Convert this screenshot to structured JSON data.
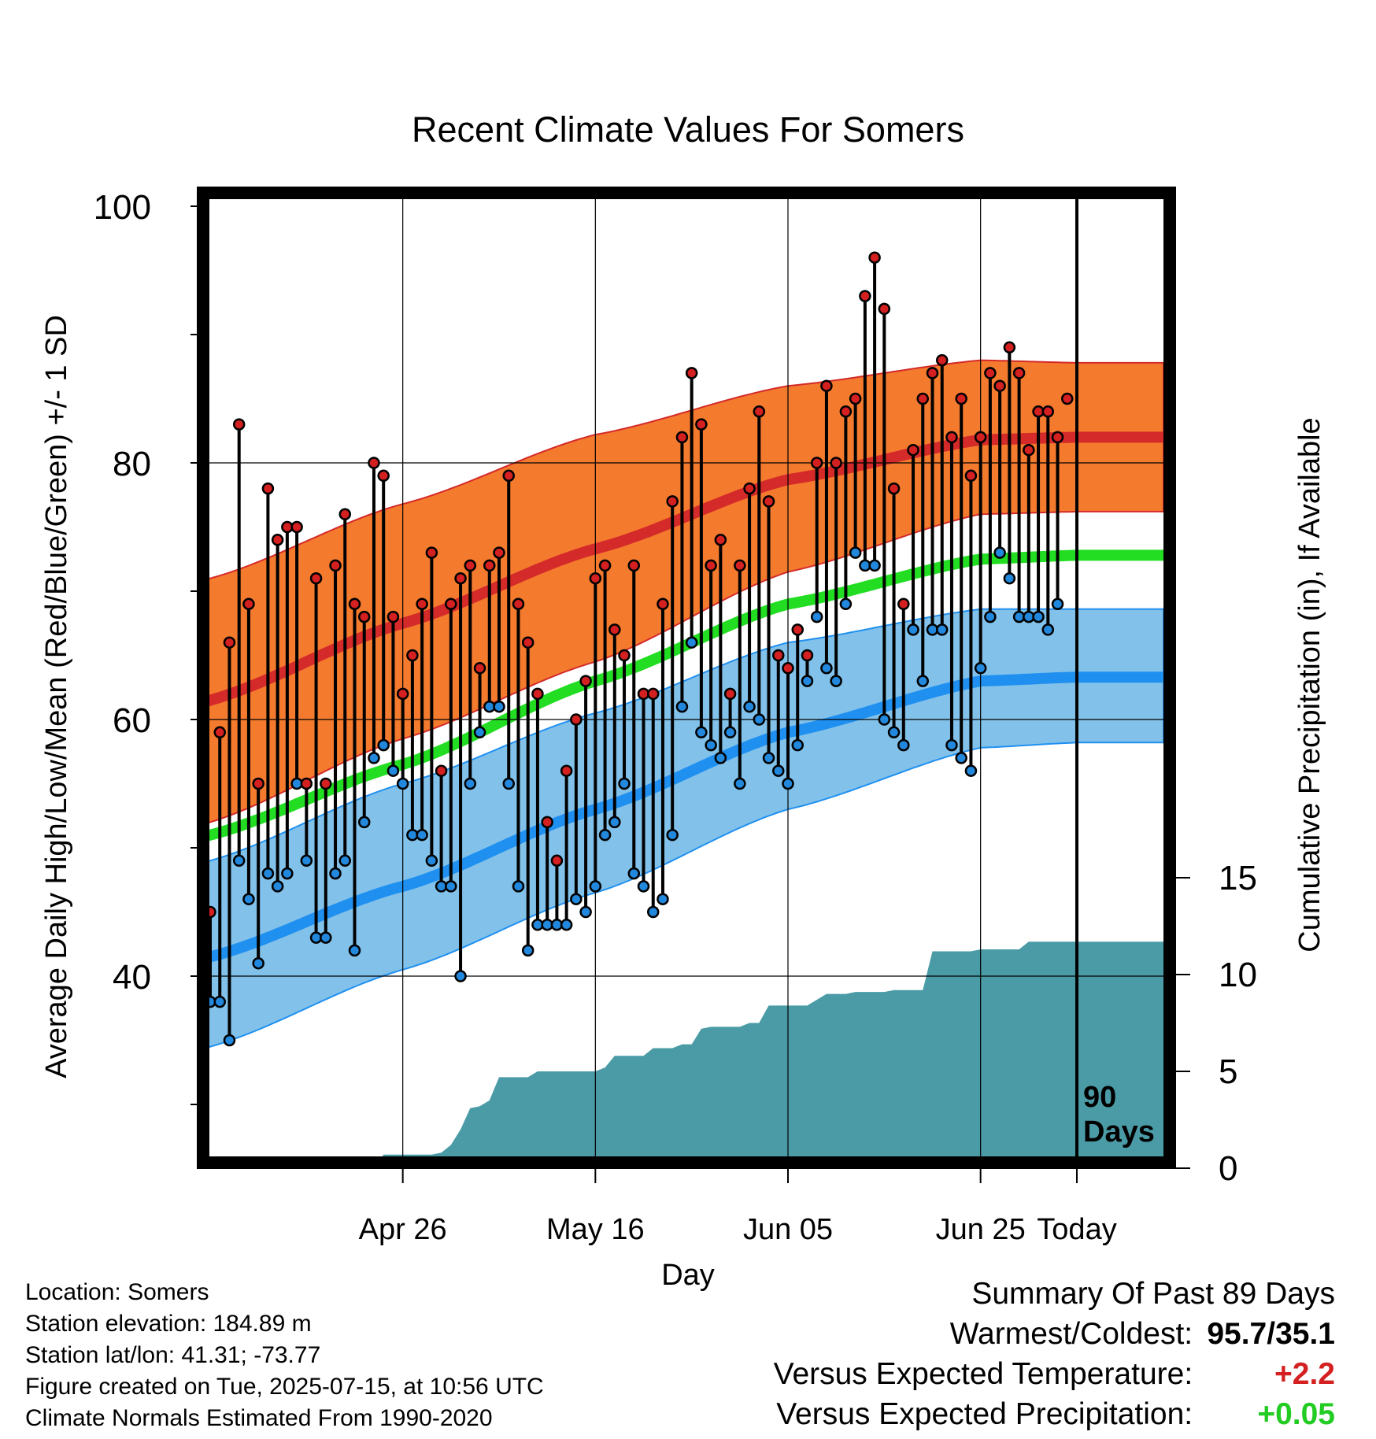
{
  "chart_data": {
    "type": "line",
    "title": "Recent Climate Values For Somers",
    "xlabel": "Day",
    "ylabel": "Average Daily High/Low/Mean (Red/Blue/Green) +/- 1 SD",
    "y2label": "Cumulative Precipitation (in), If Available",
    "ylim": [
      25,
      100
    ],
    "y2lim": [
      0,
      40
    ],
    "x_ticks": [
      "Apr 26",
      "May 16",
      "Jun 05",
      "Jun 25",
      "Today"
    ],
    "y_ticks": [
      40,
      60,
      80,
      100
    ],
    "y2_ticks": [
      0,
      5,
      10,
      15
    ],
    "marker_label": "90 Days",
    "grid": true,
    "colors": {
      "high_band": "#f47a2e",
      "high_mean": "#d42a2a",
      "low_band": "#82c2ea",
      "low_mean": "#2090f0",
      "mean_line": "#22dd22",
      "precip": "#4a9ba6",
      "high_marker": "#d42020",
      "low_marker": "#2288dd"
    },
    "normals": {
      "day_offsets": [
        -11,
        0,
        20,
        40,
        60,
        80,
        90
      ],
      "high_mean": [
        57.5,
        61.5,
        67.5,
        73.3,
        78.7,
        81.8,
        82.0
      ],
      "high_upper": [
        67.5,
        71.0,
        76.8,
        82.2,
        86.0,
        88.0,
        87.8
      ],
      "high_lower": [
        48.5,
        52.0,
        58.5,
        64.5,
        71.5,
        76.0,
        76.2
      ],
      "mean": [
        47.5,
        51.0,
        56.5,
        63.0,
        69.0,
        72.5,
        72.8
      ],
      "low_mean": [
        38.5,
        41.5,
        47.0,
        53.0,
        59.0,
        63.0,
        63.3
      ],
      "low_upper": [
        45.5,
        49.0,
        55.0,
        60.5,
        66.0,
        68.6,
        68.6
      ],
      "low_lower": [
        31.0,
        34.5,
        40.5,
        46.5,
        53.0,
        57.8,
        58.2
      ]
    },
    "series": [
      {
        "name": "Daily High",
        "values": [
          45,
          59,
          66,
          83,
          69,
          55,
          78,
          74,
          75,
          75,
          55,
          71,
          55,
          72,
          76,
          69,
          68,
          80,
          79,
          68,
          62,
          65,
          69,
          73,
          56,
          69,
          71,
          72,
          64,
          72,
          73,
          79,
          69,
          66,
          62,
          52,
          49,
          56,
          60,
          63,
          71,
          72,
          67,
          65,
          72,
          62,
          62,
          69,
          77,
          82,
          87,
          83,
          72,
          74,
          62,
          72,
          78,
          84,
          77,
          65,
          64,
          67,
          65,
          80,
          86,
          80,
          84,
          85,
          93,
          96,
          92,
          78,
          69,
          81,
          85,
          87,
          88,
          82,
          85,
          79,
          82,
          87,
          86,
          89,
          87,
          81,
          84,
          84,
          82,
          85
        ]
      },
      {
        "name": "Daily Low",
        "values": [
          38,
          38,
          35,
          49,
          46,
          41,
          48,
          47,
          48,
          55,
          49,
          43,
          43,
          48,
          49,
          42,
          52,
          57,
          58,
          56,
          55,
          51,
          51,
          49,
          47,
          47,
          40,
          55,
          59,
          61,
          61,
          55,
          47,
          42,
          44,
          44,
          44,
          44,
          46,
          45,
          47,
          51,
          52,
          55,
          48,
          47,
          45,
          46,
          51,
          61,
          66,
          59,
          58,
          57,
          59,
          55,
          61,
          60,
          57,
          56,
          55,
          58,
          63,
          68,
          64,
          63,
          69,
          73,
          72,
          72,
          60,
          59,
          58,
          67,
          63,
          67,
          67,
          58,
          57,
          56,
          64,
          68,
          73,
          71,
          68,
          68,
          68,
          67,
          69
        ]
      },
      {
        "name": "Cumulative Precipitation",
        "values": [
          0,
          0,
          0,
          0,
          0,
          0,
          0,
          0,
          0,
          0,
          0.7,
          0.7,
          0.7,
          0.7,
          0.7,
          0.7,
          0.8,
          1.2,
          2.0,
          3.1,
          3.2,
          3.5,
          4.7,
          4.7,
          4.7,
          4.7,
          5.0,
          5.0,
          5.0,
          5.0,
          5.0,
          5.0,
          5.0,
          5.2,
          5.8,
          5.8,
          5.8,
          5.8,
          6.2,
          6.2,
          6.2,
          6.4,
          6.4,
          7.2,
          7.3,
          7.3,
          7.3,
          7.3,
          7.5,
          7.5,
          8.4,
          8.4,
          8.4,
          8.4,
          8.4,
          8.7,
          9.0,
          9.0,
          9.0,
          9.1,
          9.1,
          9.1,
          9.1,
          9.2,
          9.2,
          9.2,
          9.2,
          11.2,
          11.2,
          11.2,
          11.2,
          11.2,
          11.3,
          11.3,
          11.3,
          11.3,
          11.3,
          11.7,
          11.7,
          11.7,
          11.7,
          11.7
        ]
      }
    ]
  },
  "info": {
    "location": "Location: Somers",
    "elevation": "Station elevation: 184.89 m",
    "latlon": "Station lat/lon: 41.31; -73.77",
    "created": "Figure created on Tue, 2025-07-15, at 10:56 UTC",
    "normals": "Climate Normals Estimated From 1990-2020"
  },
  "summary": {
    "heading": "Summary Of Past 89 Days",
    "warmest_label": "Warmest/Coldest:",
    "warmest_value": "95.7/35.1",
    "temp_label": "Versus Expected Temperature:",
    "temp_value": "+2.2",
    "precip_label": "Versus Expected Precipitation:",
    "precip_value": "+0.05"
  }
}
